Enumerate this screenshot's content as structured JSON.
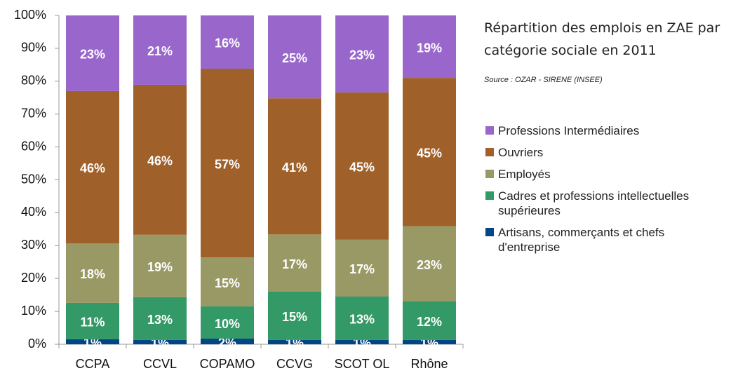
{
  "chart_data": {
    "type": "stacked_bar",
    "title": "Répartition des emplois en ZAE par catégorie sociale en 2011",
    "subtitle": "Source : OZAR - SIRENE (INSEE)",
    "categories": [
      "CCPA",
      "CCVL",
      "COPAMO",
      "CCVG",
      "SCOT OL",
      "Rhône"
    ],
    "series": [
      {
        "name": "Artisans, commerçants et chefs d'entreprise",
        "color": "#004586",
        "values": [
          1.5,
          1.3,
          1.7,
          1.3,
          1.3,
          1.3
        ],
        "value_labels": [
          "1%",
          "1%",
          "2%",
          "1%",
          "1%",
          "1%"
        ]
      },
      {
        "name": "Cadres et professions intellectuelles supérieures",
        "color": "#339966",
        "values": [
          11.1,
          13.0,
          9.8,
          14.7,
          13.2,
          11.7
        ],
        "value_labels": [
          "11%",
          "13%",
          "10%",
          "15%",
          "13%",
          "12%"
        ]
      },
      {
        "name": "Employés",
        "color": "#999966",
        "values": [
          18.1,
          19.0,
          14.9,
          17.4,
          17.3,
          22.9
        ],
        "value_labels": [
          "18%",
          "19%",
          "15%",
          "17%",
          "17%",
          "23%"
        ]
      },
      {
        "name": "Ouvriers",
        "color": "#a0602a",
        "values": [
          46.3,
          45.6,
          57.4,
          41.4,
          44.8,
          45.1
        ],
        "value_labels": [
          "46%",
          "46%",
          "57%",
          "41%",
          "45%",
          "45%"
        ]
      },
      {
        "name": "Professions Intermédiaires",
        "color": "#9966cc",
        "values": [
          23.0,
          21.1,
          16.2,
          25.2,
          23.4,
          19.0
        ],
        "value_labels": [
          "23%",
          "21%",
          "16%",
          "25%",
          "23%",
          "19%"
        ]
      }
    ],
    "ylim": [
      0,
      100
    ],
    "yticks": [
      {
        "value": 0,
        "label": "0%"
      },
      {
        "value": 10,
        "label": "10%"
      },
      {
        "value": 20,
        "label": "20%"
      },
      {
        "value": 30,
        "label": "30%"
      },
      {
        "value": 40,
        "label": "40%"
      },
      {
        "value": 50,
        "label": "50%"
      },
      {
        "value": 60,
        "label": "60%"
      },
      {
        "value": 70,
        "label": "70%"
      },
      {
        "value": 80,
        "label": "80%"
      },
      {
        "value": 90,
        "label": "90%"
      },
      {
        "value": 100,
        "label": "100%"
      }
    ],
    "legend": "right"
  }
}
